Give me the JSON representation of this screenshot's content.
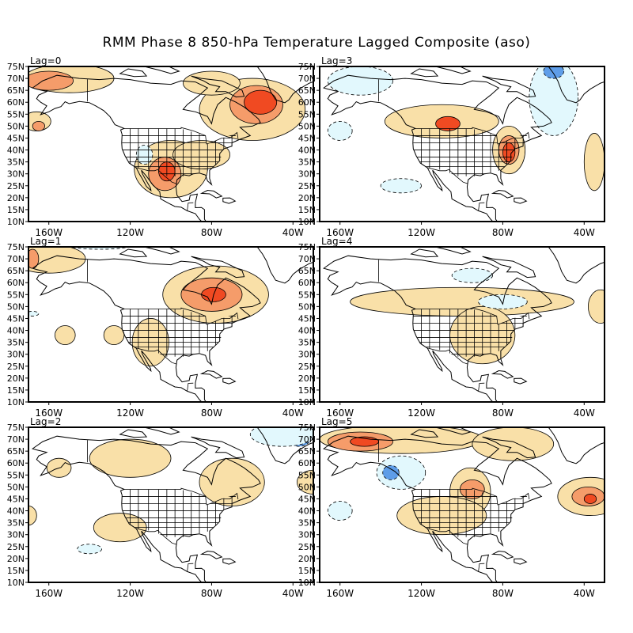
{
  "title": "RMM Phase 8 850-hPa Temperature Lagged Composite (aso)",
  "panels": [
    {
      "label": "Lag=0"
    },
    {
      "label": "Lag=3"
    },
    {
      "label": "Lag=1"
    },
    {
      "label": "Lag=4"
    },
    {
      "label": "Lag=2"
    },
    {
      "label": "Lag=5"
    }
  ],
  "lat_ticks": [
    "75N",
    "70N",
    "65N",
    "60N",
    "55N",
    "50N",
    "45N",
    "40N",
    "35N",
    "30N",
    "25N",
    "20N",
    "15N",
    "10N"
  ],
  "lon_ticks": [
    "160W",
    "120W",
    "80W",
    "40W"
  ],
  "colors": {
    "warm_light": "#f9e0a8",
    "warm_mid": "#f59c6a",
    "warm_strong": "#f04a22",
    "cold_light": "#e2f8fd",
    "cold_mid": "#5e9de8"
  }
}
